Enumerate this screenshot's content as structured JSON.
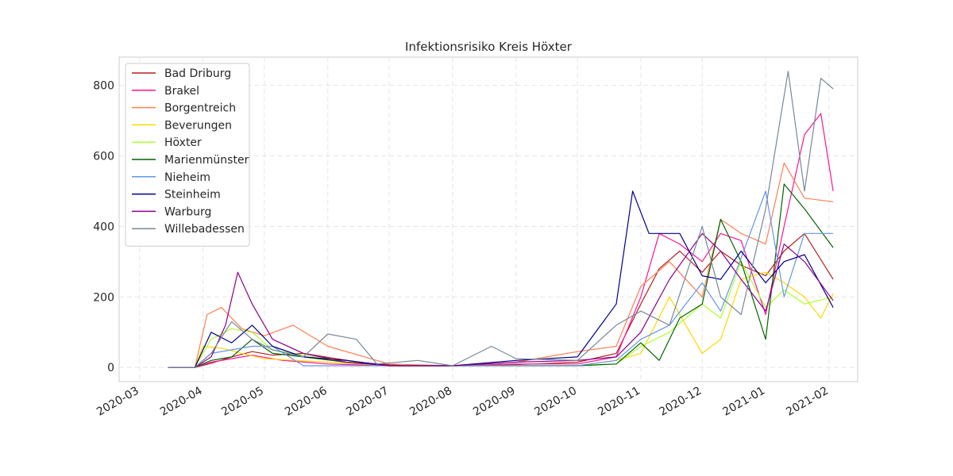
{
  "chart_data": {
    "type": "line",
    "title": "Infektionsrisiko Kreis Höxter",
    "xlabel": "",
    "ylabel": "",
    "x_axis": {
      "type": "date",
      "range": [
        "2020-02-20",
        "2021-02-15"
      ],
      "ticks": [
        "2020-03",
        "2020-04",
        "2020-05",
        "2020-06",
        "2020-07",
        "2020-08",
        "2020-09",
        "2020-10",
        "2020-11",
        "2020-12",
        "2021-01",
        "2021-02"
      ]
    },
    "y_axis": {
      "range": [
        -40,
        880
      ],
      "ticks": [
        0,
        200,
        400,
        600,
        800
      ]
    },
    "grid": true,
    "legend_position": "top-left",
    "series": [
      {
        "name": "Bad Driburg",
        "color": "#B22222",
        "points": [
          [
            "2020-03-15",
            0
          ],
          [
            "2020-03-28",
            0
          ],
          [
            "2020-04-05",
            12
          ],
          [
            "2020-04-15",
            30
          ],
          [
            "2020-04-25",
            45
          ],
          [
            "2020-05-05",
            35
          ],
          [
            "2020-05-20",
            40
          ],
          [
            "2020-06-05",
            25
          ],
          [
            "2020-06-20",
            12
          ],
          [
            "2020-07-10",
            5
          ],
          [
            "2020-08-10",
            5
          ],
          [
            "2020-09-10",
            10
          ],
          [
            "2020-10-01",
            15
          ],
          [
            "2020-10-20",
            40
          ],
          [
            "2020-11-01",
            180
          ],
          [
            "2020-11-10",
            280
          ],
          [
            "2020-11-20",
            330
          ],
          [
            "2020-12-01",
            270
          ],
          [
            "2020-12-10",
            330
          ],
          [
            "2020-12-20",
            290
          ],
          [
            "2021-01-01",
            260
          ],
          [
            "2021-01-10",
            330
          ],
          [
            "2021-01-20",
            380
          ],
          [
            "2021-02-03",
            250
          ]
        ]
      },
      {
        "name": "Brakel",
        "color": "#FF1493",
        "points": [
          [
            "2020-03-15",
            0
          ],
          [
            "2020-03-28",
            0
          ],
          [
            "2020-04-05",
            15
          ],
          [
            "2020-04-15",
            25
          ],
          [
            "2020-04-25",
            35
          ],
          [
            "2020-05-10",
            20
          ],
          [
            "2020-06-01",
            10
          ],
          [
            "2020-07-01",
            5
          ],
          [
            "2020-08-01",
            5
          ],
          [
            "2020-09-01",
            10
          ],
          [
            "2020-10-01",
            10
          ],
          [
            "2020-10-20",
            30
          ],
          [
            "2020-11-01",
            200
          ],
          [
            "2020-11-10",
            380
          ],
          [
            "2020-11-20",
            350
          ],
          [
            "2020-12-01",
            300
          ],
          [
            "2020-12-10",
            380
          ],
          [
            "2020-12-20",
            360
          ],
          [
            "2021-01-01",
            150
          ],
          [
            "2021-01-10",
            400
          ],
          [
            "2021-01-20",
            660
          ],
          [
            "2021-01-28",
            720
          ],
          [
            "2021-02-03",
            500
          ]
        ]
      },
      {
        "name": "Borgentreich",
        "color": "#FF7F50",
        "points": [
          [
            "2020-03-15",
            0
          ],
          [
            "2020-03-28",
            0
          ],
          [
            "2020-04-03",
            150
          ],
          [
            "2020-04-10",
            170
          ],
          [
            "2020-04-20",
            110
          ],
          [
            "2020-05-01",
            90
          ],
          [
            "2020-05-15",
            120
          ],
          [
            "2020-06-01",
            60
          ],
          [
            "2020-07-01",
            10
          ],
          [
            "2020-08-01",
            5
          ],
          [
            "2020-09-01",
            15
          ],
          [
            "2020-10-01",
            45
          ],
          [
            "2020-10-20",
            60
          ],
          [
            "2020-11-01",
            230
          ],
          [
            "2020-11-15",
            300
          ],
          [
            "2020-12-01",
            200
          ],
          [
            "2020-12-10",
            420
          ],
          [
            "2020-12-20",
            380
          ],
          [
            "2021-01-01",
            350
          ],
          [
            "2021-01-10",
            580
          ],
          [
            "2021-01-20",
            480
          ],
          [
            "2021-02-03",
            470
          ]
        ]
      },
      {
        "name": "Beverungen",
        "color": "#FFD700",
        "points": [
          [
            "2020-03-15",
            0
          ],
          [
            "2020-03-28",
            0
          ],
          [
            "2020-04-01",
            60
          ],
          [
            "2020-04-10",
            55
          ],
          [
            "2020-04-20",
            40
          ],
          [
            "2020-05-01",
            25
          ],
          [
            "2020-06-01",
            15
          ],
          [
            "2020-07-01",
            5
          ],
          [
            "2020-08-01",
            5
          ],
          [
            "2020-09-01",
            5
          ],
          [
            "2020-10-01",
            5
          ],
          [
            "2020-10-20",
            20
          ],
          [
            "2020-11-01",
            40
          ],
          [
            "2020-11-15",
            200
          ],
          [
            "2020-12-01",
            40
          ],
          [
            "2020-12-10",
            80
          ],
          [
            "2020-12-20",
            250
          ],
          [
            "2021-01-01",
            270
          ],
          [
            "2021-01-10",
            240
          ],
          [
            "2021-01-20",
            200
          ],
          [
            "2021-01-28",
            140
          ],
          [
            "2021-02-03",
            210
          ]
        ]
      },
      {
        "name": "Höxter",
        "color": "#ADFF2F",
        "points": [
          [
            "2020-03-15",
            0
          ],
          [
            "2020-03-28",
            0
          ],
          [
            "2020-04-05",
            80
          ],
          [
            "2020-04-15",
            110
          ],
          [
            "2020-04-25",
            100
          ],
          [
            "2020-05-05",
            50
          ],
          [
            "2020-05-20",
            35
          ],
          [
            "2020-06-10",
            15
          ],
          [
            "2020-07-01",
            5
          ],
          [
            "2020-08-01",
            5
          ],
          [
            "2020-09-01",
            5
          ],
          [
            "2020-10-01",
            5
          ],
          [
            "2020-10-20",
            10
          ],
          [
            "2020-11-01",
            60
          ],
          [
            "2020-11-15",
            100
          ],
          [
            "2020-12-01",
            180
          ],
          [
            "2020-12-10",
            140
          ],
          [
            "2020-12-20",
            300
          ],
          [
            "2021-01-01",
            170
          ],
          [
            "2021-01-10",
            220
          ],
          [
            "2021-01-20",
            180
          ],
          [
            "2021-02-03",
            200
          ]
        ]
      },
      {
        "name": "Marienmünster",
        "color": "#006400",
        "points": [
          [
            "2020-03-15",
            0
          ],
          [
            "2020-03-28",
            0
          ],
          [
            "2020-04-05",
            20
          ],
          [
            "2020-04-15",
            30
          ],
          [
            "2020-04-25",
            80
          ],
          [
            "2020-05-05",
            40
          ],
          [
            "2020-05-20",
            30
          ],
          [
            "2020-06-10",
            15
          ],
          [
            "2020-07-01",
            5
          ],
          [
            "2020-08-01",
            5
          ],
          [
            "2020-09-01",
            5
          ],
          [
            "2020-10-01",
            5
          ],
          [
            "2020-10-20",
            10
          ],
          [
            "2020-11-01",
            70
          ],
          [
            "2020-11-10",
            20
          ],
          [
            "2020-11-20",
            140
          ],
          [
            "2020-12-01",
            180
          ],
          [
            "2020-12-10",
            420
          ],
          [
            "2020-12-20",
            300
          ],
          [
            "2021-01-01",
            80
          ],
          [
            "2021-01-10",
            520
          ],
          [
            "2021-01-20",
            450
          ],
          [
            "2021-02-03",
            340
          ]
        ]
      },
      {
        "name": "Nieheim",
        "color": "#6495ED",
        "points": [
          [
            "2020-03-15",
            0
          ],
          [
            "2020-03-28",
            0
          ],
          [
            "2020-04-05",
            40
          ],
          [
            "2020-04-15",
            50
          ],
          [
            "2020-04-25",
            60
          ],
          [
            "2020-05-05",
            60
          ],
          [
            "2020-05-20",
            5
          ],
          [
            "2020-06-10",
            5
          ],
          [
            "2020-07-01",
            5
          ],
          [
            "2020-08-01",
            5
          ],
          [
            "2020-09-01",
            5
          ],
          [
            "2020-10-01",
            5
          ],
          [
            "2020-10-20",
            20
          ],
          [
            "2020-11-01",
            80
          ],
          [
            "2020-11-15",
            120
          ],
          [
            "2020-12-01",
            240
          ],
          [
            "2020-12-10",
            160
          ],
          [
            "2020-12-20",
            310
          ],
          [
            "2021-01-01",
            500
          ],
          [
            "2021-01-10",
            200
          ],
          [
            "2021-01-20",
            380
          ],
          [
            "2021-02-03",
            380
          ]
        ]
      },
      {
        "name": "Steinheim",
        "color": "#00008B",
        "points": [
          [
            "2020-03-15",
            0
          ],
          [
            "2020-03-28",
            0
          ],
          [
            "2020-04-05",
            100
          ],
          [
            "2020-04-15",
            70
          ],
          [
            "2020-04-25",
            120
          ],
          [
            "2020-05-05",
            60
          ],
          [
            "2020-05-20",
            30
          ],
          [
            "2020-06-10",
            20
          ],
          [
            "2020-07-01",
            5
          ],
          [
            "2020-08-01",
            5
          ],
          [
            "2020-09-01",
            20
          ],
          [
            "2020-10-01",
            30
          ],
          [
            "2020-10-20",
            180
          ],
          [
            "2020-10-28",
            500
          ],
          [
            "2020-11-05",
            380
          ],
          [
            "2020-11-20",
            380
          ],
          [
            "2020-12-01",
            260
          ],
          [
            "2020-12-10",
            250
          ],
          [
            "2020-12-20",
            330
          ],
          [
            "2021-01-01",
            240
          ],
          [
            "2021-01-10",
            300
          ],
          [
            "2021-01-20",
            320
          ],
          [
            "2021-02-03",
            170
          ]
        ]
      },
      {
        "name": "Warburg",
        "color": "#8B008B",
        "points": [
          [
            "2020-03-15",
            0
          ],
          [
            "2020-03-28",
            0
          ],
          [
            "2020-04-05",
            30
          ],
          [
            "2020-04-12",
            120
          ],
          [
            "2020-04-18",
            270
          ],
          [
            "2020-04-25",
            180
          ],
          [
            "2020-05-05",
            80
          ],
          [
            "2020-05-20",
            40
          ],
          [
            "2020-06-10",
            15
          ],
          [
            "2020-07-01",
            5
          ],
          [
            "2020-08-01",
            5
          ],
          [
            "2020-09-01",
            15
          ],
          [
            "2020-10-01",
            20
          ],
          [
            "2020-10-20",
            30
          ],
          [
            "2020-11-01",
            100
          ],
          [
            "2020-11-15",
            250
          ],
          [
            "2020-12-01",
            380
          ],
          [
            "2020-12-10",
            330
          ],
          [
            "2020-12-20",
            250
          ],
          [
            "2021-01-01",
            160
          ],
          [
            "2021-01-10",
            350
          ],
          [
            "2021-01-20",
            300
          ],
          [
            "2021-02-03",
            190
          ]
        ]
      },
      {
        "name": "Willebadessen",
        "color": "#778899",
        "points": [
          [
            "2020-03-15",
            0
          ],
          [
            "2020-03-28",
            0
          ],
          [
            "2020-04-05",
            40
          ],
          [
            "2020-04-15",
            130
          ],
          [
            "2020-04-25",
            80
          ],
          [
            "2020-05-05",
            50
          ],
          [
            "2020-05-20",
            30
          ],
          [
            "2020-06-01",
            95
          ],
          [
            "2020-06-15",
            80
          ],
          [
            "2020-06-25",
            10
          ],
          [
            "2020-07-15",
            20
          ],
          [
            "2020-08-01",
            5
          ],
          [
            "2020-08-20",
            60
          ],
          [
            "2020-09-01",
            25
          ],
          [
            "2020-10-01",
            20
          ],
          [
            "2020-10-20",
            120
          ],
          [
            "2020-11-01",
            160
          ],
          [
            "2020-11-15",
            120
          ],
          [
            "2020-12-01",
            400
          ],
          [
            "2020-12-10",
            200
          ],
          [
            "2020-12-20",
            150
          ],
          [
            "2021-01-01",
            450
          ],
          [
            "2021-01-12",
            840
          ],
          [
            "2021-01-20",
            500
          ],
          [
            "2021-01-28",
            820
          ],
          [
            "2021-02-03",
            790
          ]
        ]
      }
    ]
  }
}
